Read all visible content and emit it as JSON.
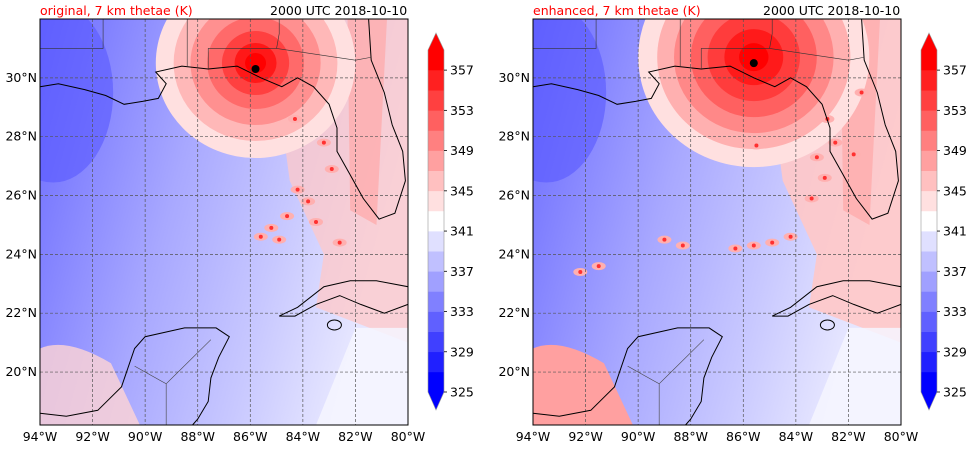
{
  "chart_data": [
    {
      "type": "heatmap",
      "title": "original, 7 km thetae (K)",
      "title_right": "2000 UTC 2018-10-10",
      "xlabel": "",
      "ylabel": "",
      "x_ticks": [
        "94°W",
        "92°W",
        "90°W",
        "88°W",
        "86°W",
        "84°W",
        "82°W",
        "80°W"
      ],
      "x_tick_values": [
        -94,
        -92,
        -90,
        -88,
        -86,
        -84,
        -82,
        -80
      ],
      "y_ticks": [
        "20°N",
        "22°N",
        "24°N",
        "26°N",
        "28°N",
        "30°N"
      ],
      "y_tick_values": [
        20,
        22,
        24,
        26,
        28,
        30
      ],
      "xlim": [
        -94,
        -80
      ],
      "ylim": [
        18.2,
        32
      ],
      "grid": true,
      "storm_center": {
        "lon": -85.8,
        "lat": 30.3
      },
      "colorbar": {
        "ticks": [
          "325",
          "329",
          "333",
          "337",
          "341",
          "345",
          "349",
          "353",
          "357"
        ],
        "levels": [
          325,
          327,
          329,
          331,
          333,
          335,
          337,
          339,
          341,
          343,
          345,
          347,
          349,
          351,
          353,
          355,
          357,
          359
        ],
        "colors": [
          "#0000ff",
          "#2020ff",
          "#4040ff",
          "#6060ff",
          "#8080ff",
          "#a0a0ff",
          "#c0c0ff",
          "#e0e0ff",
          "#ffffff",
          "#ffe0e0",
          "#ffc0c0",
          "#ffa0a0",
          "#ff8080",
          "#ff6060",
          "#ff4040",
          "#ff2020",
          "#ff0000"
        ],
        "extend": "both"
      }
    },
    {
      "type": "heatmap",
      "title": "enhanced, 7 km thetae (K)",
      "title_right": "2000 UTC 2018-10-10",
      "xlabel": "",
      "ylabel": "",
      "x_ticks": [
        "94°W",
        "92°W",
        "90°W",
        "88°W",
        "86°W",
        "84°W",
        "82°W",
        "80°W"
      ],
      "x_tick_values": [
        -94,
        -92,
        -90,
        -88,
        -86,
        -84,
        -82,
        -80
      ],
      "y_ticks": [
        "20°N",
        "22°N",
        "24°N",
        "26°N",
        "28°N",
        "30°N"
      ],
      "y_tick_values": [
        20,
        22,
        24,
        26,
        28,
        30
      ],
      "xlim": [
        -94,
        -80
      ],
      "ylim": [
        18.2,
        32
      ],
      "grid": true,
      "storm_center": {
        "lon": -85.6,
        "lat": 30.5
      },
      "colorbar": {
        "ticks": [
          "325",
          "329",
          "333",
          "337",
          "341",
          "345",
          "349",
          "353",
          "357"
        ],
        "levels": [
          325,
          327,
          329,
          331,
          333,
          335,
          337,
          339,
          341,
          343,
          345,
          347,
          349,
          351,
          353,
          355,
          357,
          359
        ],
        "colors": [
          "#0000ff",
          "#2020ff",
          "#4040ff",
          "#6060ff",
          "#8080ff",
          "#a0a0ff",
          "#c0c0ff",
          "#e0e0ff",
          "#ffffff",
          "#ffe0e0",
          "#ffc0c0",
          "#ffa0a0",
          "#ff8080",
          "#ff6060",
          "#ff4040",
          "#ff2020",
          "#ff0000"
        ],
        "extend": "both"
      }
    }
  ]
}
